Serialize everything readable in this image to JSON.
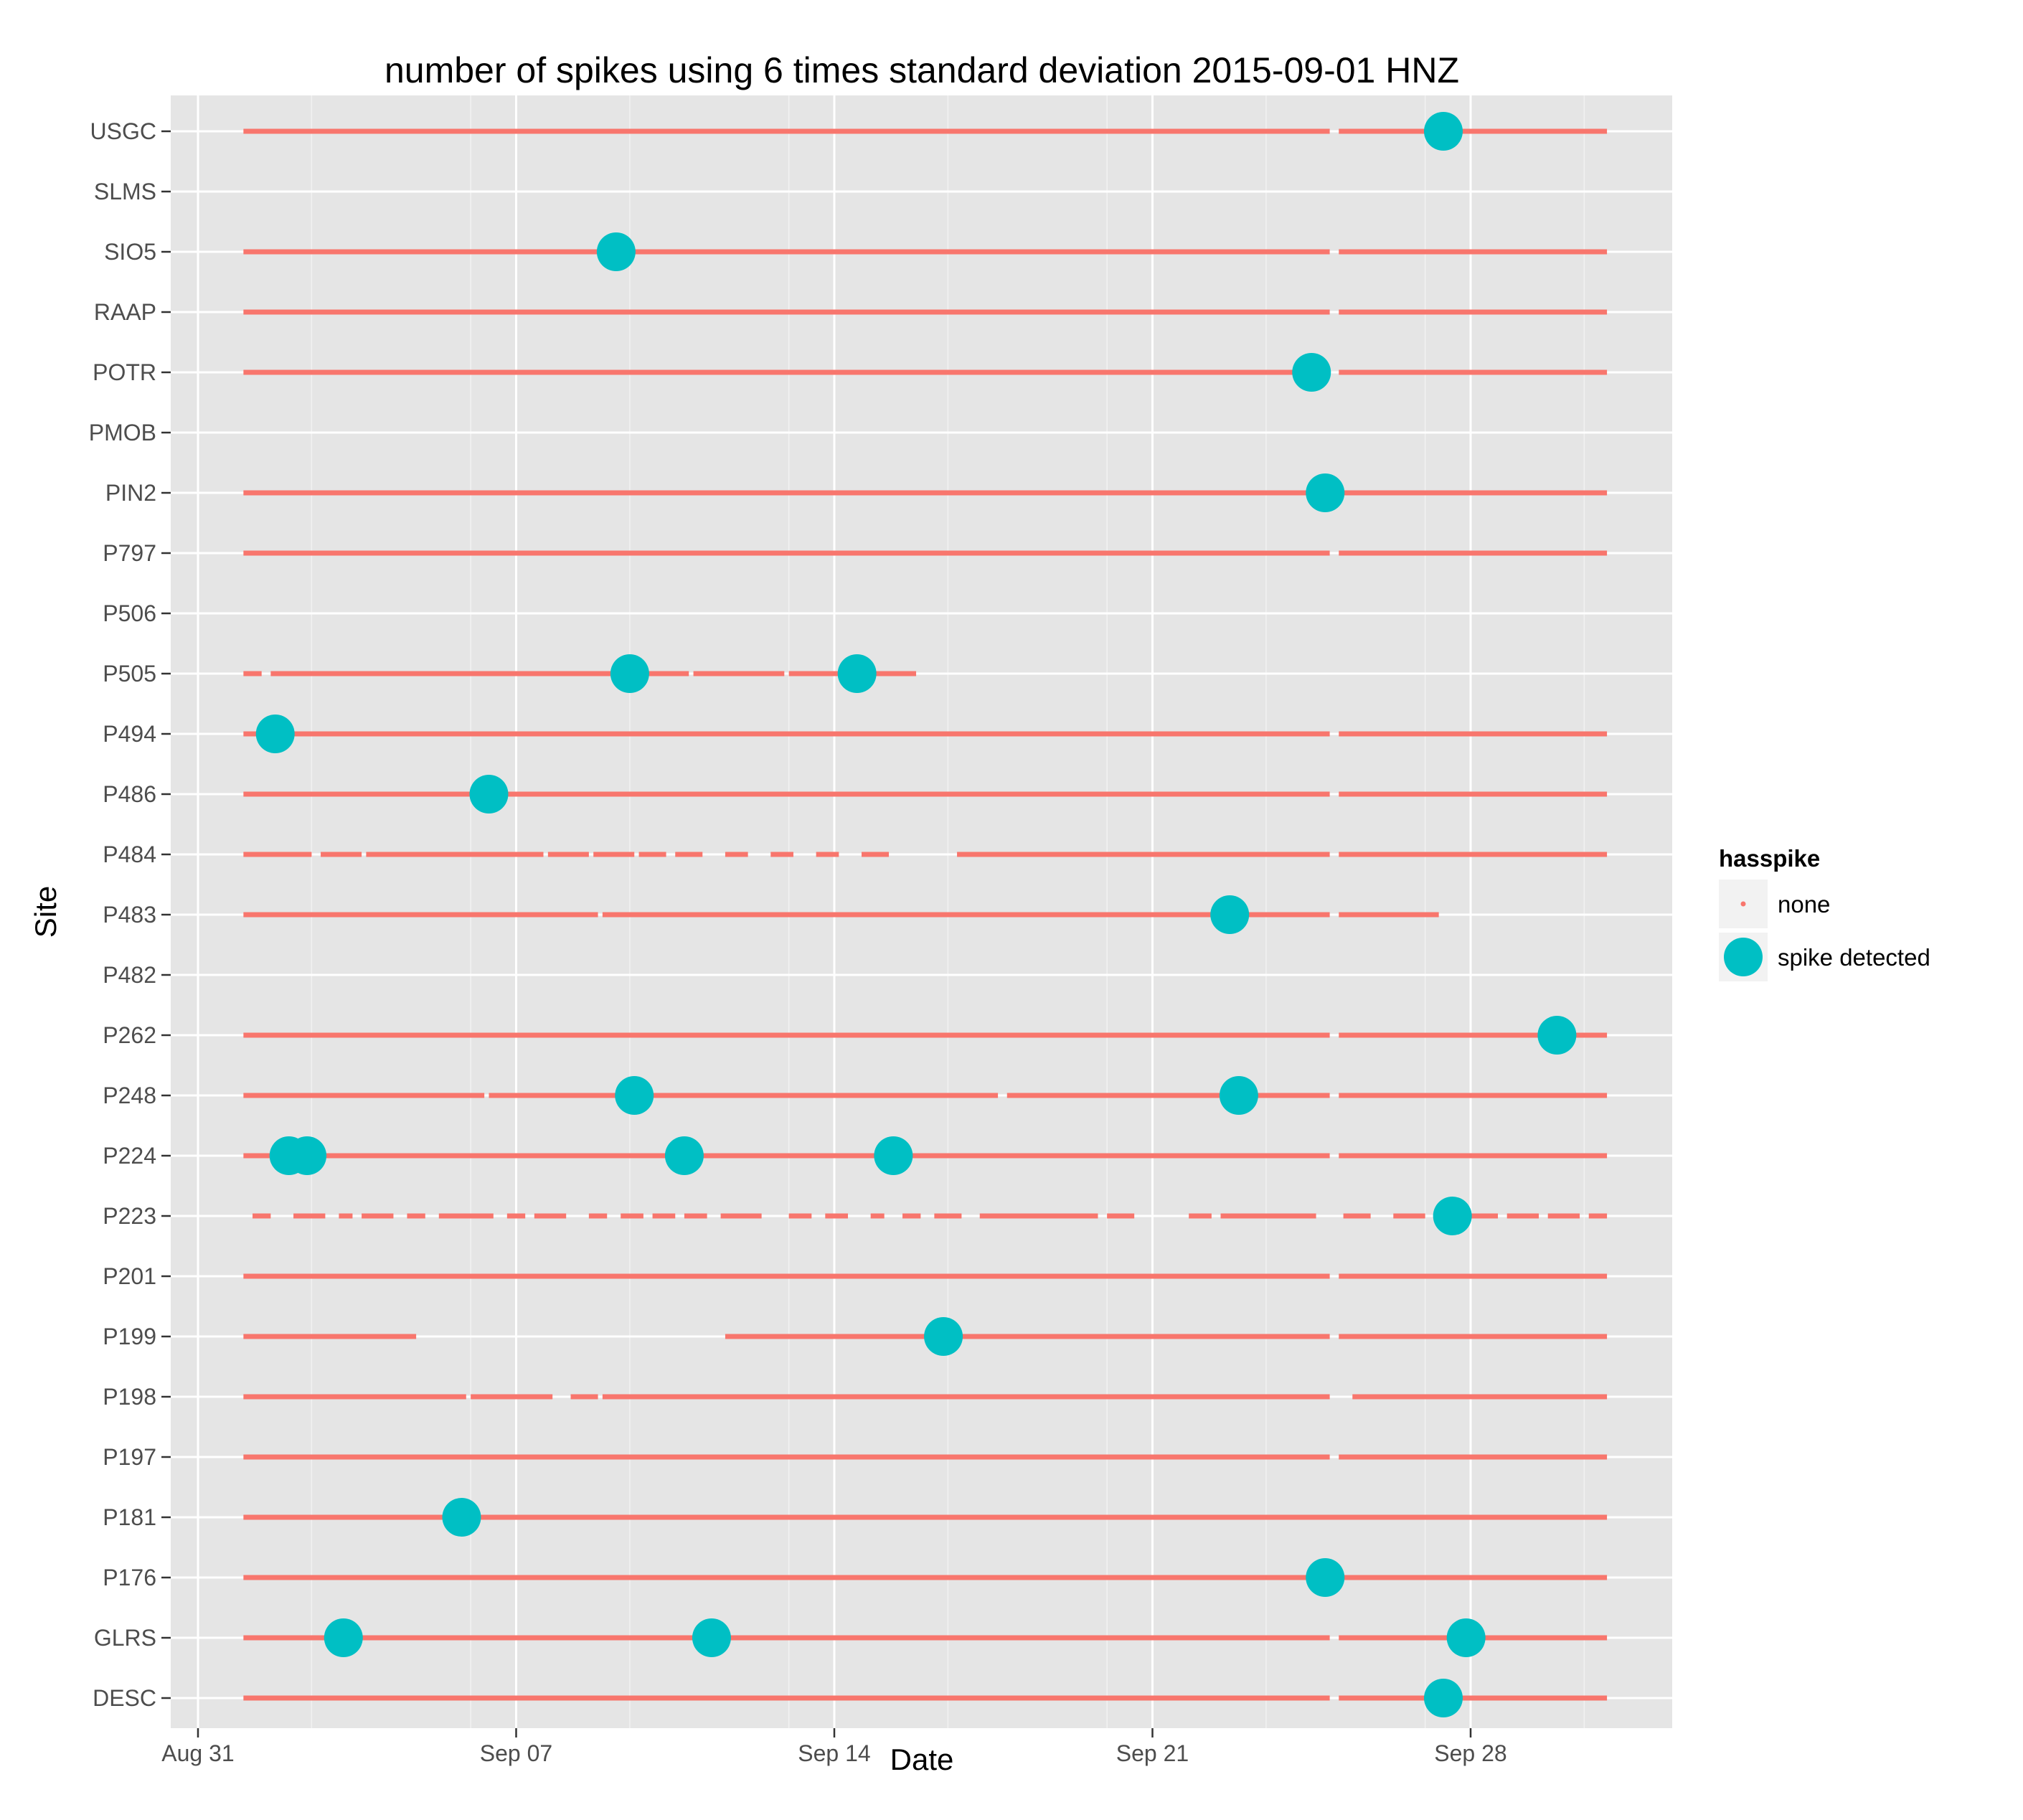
{
  "chart_data": {
    "type": "scatter",
    "title": "number of spikes using  6 times standard deviation 2015-09-01 HNZ",
    "xlabel": "Date",
    "ylabel": "Site",
    "x_ticks": [
      "Aug 31",
      "Sep 07",
      "Sep 14",
      "Sep 21",
      "Sep 28"
    ],
    "x_tick_days": [
      0,
      7,
      14,
      21,
      28
    ],
    "xlim_days": [
      -1.3,
      31.8
    ],
    "grid": true,
    "legend": {
      "title": "hasspike",
      "placement": "right",
      "entries": [
        {
          "label": "none",
          "color": "#F8766D"
        },
        {
          "label": "spike detected",
          "color": "#00BFC4"
        }
      ]
    },
    "sites": [
      "USGC",
      "SLMS",
      "SIO5",
      "RAAP",
      "POTR",
      "PMOB",
      "PIN2",
      "P797",
      "P506",
      "P505",
      "P494",
      "P486",
      "P484",
      "P483",
      "P482",
      "P262",
      "P248",
      "P224",
      "P223",
      "P201",
      "P199",
      "P198",
      "P197",
      "P181",
      "P176",
      "GLRS",
      "DESC"
    ],
    "coverage": {
      "USGC": [
        [
          "2015-09-01",
          "2015-09-24.9"
        ],
        [
          "2015-09-25.1",
          "2015-10-01"
        ]
      ],
      "SIO5": [
        [
          "2015-09-01",
          "2015-09-24.9"
        ],
        [
          "2015-09-25.1",
          "2015-10-01"
        ]
      ],
      "RAAP": [
        [
          "2015-09-01",
          "2015-09-24.9"
        ],
        [
          "2015-09-25.1",
          "2015-10-01"
        ]
      ],
      "POTR": [
        [
          "2015-09-01",
          "2015-09-24.9"
        ],
        [
          "2015-09-25.1",
          "2015-10-01"
        ]
      ],
      "PIN2": [
        [
          "2015-09-01",
          "2015-10-01"
        ]
      ],
      "P797": [
        [
          "2015-09-01",
          "2015-09-24.9"
        ],
        [
          "2015-09-25.1",
          "2015-10-01"
        ]
      ],
      "P505": [
        [
          "2015-09-01",
          "2015-09-01.4"
        ],
        [
          "2015-09-01.6",
          "2015-09-10.8"
        ],
        [
          "2015-09-10.9",
          "2015-09-12.9"
        ],
        [
          "2015-09-13.0",
          "2015-09-15.8"
        ]
      ],
      "P494": [
        [
          "2015-09-01",
          "2015-09-24.9"
        ],
        [
          "2015-09-25.1",
          "2015-10-01"
        ]
      ],
      "P486": [
        [
          "2015-09-01",
          "2015-09-24.9"
        ],
        [
          "2015-09-25.1",
          "2015-10-01"
        ]
      ],
      "P484": [
        [
          "2015-09-01",
          "2015-09-02.5"
        ],
        [
          "2015-09-02.7",
          "2015-09-03.6"
        ],
        [
          "2015-09-03.7",
          "2015-09-07.6"
        ],
        [
          "2015-09-07.7",
          "2015-09-08.6"
        ],
        [
          "2015-09-08.7",
          "2015-09-09.6"
        ],
        [
          "2015-09-09.7",
          "2015-09-10.3"
        ],
        [
          "2015-09-10.5",
          "2015-09-11.1"
        ],
        [
          "2015-09-11.6",
          "2015-09-12.1"
        ],
        [
          "2015-09-12.6",
          "2015-09-13.1"
        ],
        [
          "2015-09-13.6",
          "2015-09-14.1"
        ],
        [
          "2015-09-14.6",
          "2015-09-15.2"
        ],
        [
          "2015-09-16.7",
          "2015-09-24.9"
        ],
        [
          "2015-09-25.1",
          "2015-10-01"
        ]
      ],
      "P483": [
        [
          "2015-09-01",
          "2015-09-08.8"
        ],
        [
          "2015-09-08.9",
          "2015-09-24.9"
        ],
        [
          "2015-09-25.1",
          "2015-09-27.3"
        ]
      ],
      "P262": [
        [
          "2015-09-01",
          "2015-09-24.9"
        ],
        [
          "2015-09-25.1",
          "2015-10-01"
        ]
      ],
      "P248": [
        [
          "2015-09-01",
          "2015-09-06.3"
        ],
        [
          "2015-09-06.4",
          "2015-09-17.6"
        ],
        [
          "2015-09-17.8",
          "2015-09-24.9"
        ],
        [
          "2015-09-25.1",
          "2015-10-01"
        ]
      ],
      "P224": [
        [
          "2015-09-01",
          "2015-09-24.9"
        ],
        [
          "2015-09-25.1",
          "2015-10-01"
        ]
      ],
      "P223": [
        [
          "2015-09-01.2",
          "2015-09-01.6"
        ],
        [
          "2015-09-02.1",
          "2015-09-02.8"
        ],
        [
          "2015-09-03.1",
          "2015-09-03.4"
        ],
        [
          "2015-09-03.6",
          "2015-09-04.3"
        ],
        [
          "2015-09-04.6",
          "2015-09-05.0"
        ],
        [
          "2015-09-05.3",
          "2015-09-06.5"
        ],
        [
          "2015-09-06.8",
          "2015-09-07.2"
        ],
        [
          "2015-09-07.4",
          "2015-09-08.1"
        ],
        [
          "2015-09-08.6",
          "2015-09-09.0"
        ],
        [
          "2015-09-09.3",
          "2015-09-09.8"
        ],
        [
          "2015-09-10.0",
          "2015-09-10.5"
        ],
        [
          "2015-09-10.7",
          "2015-09-11.2"
        ],
        [
          "2015-09-11.5",
          "2015-09-12.4"
        ],
        [
          "2015-09-13.0",
          "2015-09-13.5"
        ],
        [
          "2015-09-13.8",
          "2015-09-14.3"
        ],
        [
          "2015-09-14.8",
          "2015-09-15.1"
        ],
        [
          "2015-09-15.5",
          "2015-09-15.9"
        ],
        [
          "2015-09-16.2",
          "2015-09-16.8"
        ],
        [
          "2015-09-17.2",
          "2015-09-19.8"
        ],
        [
          "2015-09-20.0",
          "2015-09-20.6"
        ],
        [
          "2015-09-21.8",
          "2015-09-22.3"
        ],
        [
          "2015-09-22.5",
          "2015-09-24.6"
        ],
        [
          "2015-09-25.2",
          "2015-09-25.8"
        ],
        [
          "2015-09-26.3",
          "2015-09-27.0"
        ],
        [
          "2015-09-27.4",
          "2015-09-28.6"
        ],
        [
          "2015-09-28.8",
          "2015-09-29.5"
        ],
        [
          "2015-09-29.7",
          "2015-09-30.4"
        ],
        [
          "2015-09-30.6",
          "2015-10-01"
        ]
      ],
      "P201": [
        [
          "2015-09-01",
          "2015-09-24.9"
        ],
        [
          "2015-09-25.1",
          "2015-10-01"
        ]
      ],
      "P199": [
        [
          "2015-09-01",
          "2015-09-04.8"
        ],
        [
          "2015-09-11.6",
          "2015-09-24.9"
        ],
        [
          "2015-09-25.1",
          "2015-10-01"
        ]
      ],
      "P198": [
        [
          "2015-09-01",
          "2015-09-05.9"
        ],
        [
          "2015-09-06.0",
          "2015-09-07.8"
        ],
        [
          "2015-09-08.2",
          "2015-09-08.8"
        ],
        [
          "2015-09-08.9",
          "2015-09-24.9"
        ],
        [
          "2015-09-25.4",
          "2015-10-01"
        ]
      ],
      "P197": [
        [
          "2015-09-01",
          "2015-09-24.9"
        ],
        [
          "2015-09-25.1",
          "2015-10-01"
        ]
      ],
      "P181": [
        [
          "2015-09-01",
          "2015-10-01"
        ]
      ],
      "P176": [
        [
          "2015-09-01",
          "2015-10-01"
        ]
      ],
      "GLRS": [
        [
          "2015-09-01",
          "2015-09-24.9"
        ],
        [
          "2015-09-25.1",
          "2015-10-01"
        ]
      ],
      "DESC": [
        [
          "2015-09-01",
          "2015-09-24.9"
        ],
        [
          "2015-09-25.1",
          "2015-10-01"
        ]
      ]
    },
    "spikes": [
      {
        "site": "USGC",
        "date": "2015-09-27.4"
      },
      {
        "site": "SIO5",
        "date": "2015-09-09.2"
      },
      {
        "site": "POTR",
        "date": "2015-09-24.5"
      },
      {
        "site": "PIN2",
        "date": "2015-09-24.8"
      },
      {
        "site": "P505",
        "date": "2015-09-09.5"
      },
      {
        "site": "P505",
        "date": "2015-09-14.5"
      },
      {
        "site": "P494",
        "date": "2015-09-01.7"
      },
      {
        "site": "P486",
        "date": "2015-09-06.4"
      },
      {
        "site": "P483",
        "date": "2015-09-22.7"
      },
      {
        "site": "P262",
        "date": "2015-09-29.9"
      },
      {
        "site": "P248",
        "date": "2015-09-09.6"
      },
      {
        "site": "P248",
        "date": "2015-09-22.9"
      },
      {
        "site": "P224",
        "date": "2015-09-02.0"
      },
      {
        "site": "P224",
        "date": "2015-09-02.4"
      },
      {
        "site": "P224",
        "date": "2015-09-10.7"
      },
      {
        "site": "P224",
        "date": "2015-09-15.3"
      },
      {
        "site": "P223",
        "date": "2015-09-27.6"
      },
      {
        "site": "P199",
        "date": "2015-09-16.4"
      },
      {
        "site": "P181",
        "date": "2015-09-05.8"
      },
      {
        "site": "P176",
        "date": "2015-09-24.8"
      },
      {
        "site": "GLRS",
        "date": "2015-09-03.2"
      },
      {
        "site": "GLRS",
        "date": "2015-09-11.3"
      },
      {
        "site": "GLRS",
        "date": "2015-09-27.9"
      },
      {
        "site": "DESC",
        "date": "2015-09-27.4"
      }
    ],
    "colors": {
      "panel_bg": "#E5E5E5",
      "grid_major": "#FFFFFF",
      "grid_minor": "#F2F2F2",
      "none": "#F8766D",
      "spike": "#00BFC4",
      "legend_key_bg": "#F2F2F2"
    }
  }
}
